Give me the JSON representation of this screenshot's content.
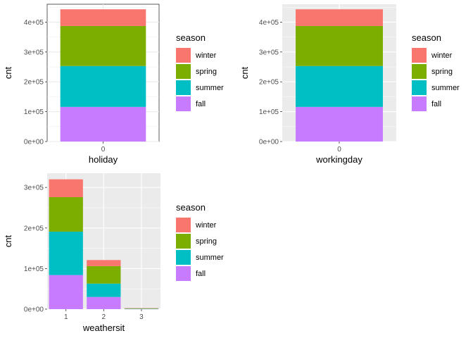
{
  "chart_data": [
    {
      "type": "bar",
      "stacked": true,
      "theme": "white-background",
      "categories": [
        "0"
      ],
      "series": [
        {
          "name": "winter",
          "values": [
            56000
          ]
        },
        {
          "name": "spring",
          "values": [
            134000
          ]
        },
        {
          "name": "summer",
          "values": [
            137000
          ]
        },
        {
          "name": "fall",
          "values": [
            116000
          ]
        }
      ],
      "xlabel": "holiday",
      "ylabel": "cnt",
      "ylim": [
        0,
        460000
      ],
      "yticks": [
        "0e+00",
        "1e+05",
        "2e+05",
        "3e+05",
        "4e+05"
      ],
      "grid": true,
      "legend": {
        "title": "season",
        "position": "right"
      }
    },
    {
      "type": "bar",
      "stacked": true,
      "theme": "grey-background",
      "categories": [
        "0"
      ],
      "series": [
        {
          "name": "winter",
          "values": [
            56000
          ]
        },
        {
          "name": "spring",
          "values": [
            134000
          ]
        },
        {
          "name": "summer",
          "values": [
            137000
          ]
        },
        {
          "name": "fall",
          "values": [
            116000
          ]
        }
      ],
      "xlabel": "workingday",
      "ylabel": "cnt",
      "ylim": [
        0,
        460000
      ],
      "yticks": [
        "0e+00",
        "1e+05",
        "2e+05",
        "3e+05",
        "4e+05"
      ],
      "grid": true,
      "legend": {
        "title": "season",
        "position": "right"
      }
    },
    {
      "type": "bar",
      "stacked": true,
      "theme": "grey-background",
      "categories": [
        "1",
        "2",
        "3"
      ],
      "series": [
        {
          "name": "winter",
          "values": [
            44000,
            15000,
            500
          ]
        },
        {
          "name": "spring",
          "values": [
            85000,
            43000,
            1000
          ]
        },
        {
          "name": "summer",
          "values": [
            107000,
            33000,
            600
          ]
        },
        {
          "name": "fall",
          "values": [
            84000,
            30000,
            400
          ]
        }
      ],
      "xlabel": "weathersit",
      "ylabel": "cnt",
      "ylim": [
        0,
        335000
      ],
      "yticks": [
        "0e+00",
        "1e+05",
        "2e+05",
        "3e+05"
      ],
      "grid": true,
      "legend": {
        "title": "season",
        "position": "right"
      }
    }
  ],
  "colors": {
    "winter": "#F8766D",
    "spring": "#7CAE00",
    "summer": "#00BFC4",
    "fall": "#C77CFF"
  }
}
